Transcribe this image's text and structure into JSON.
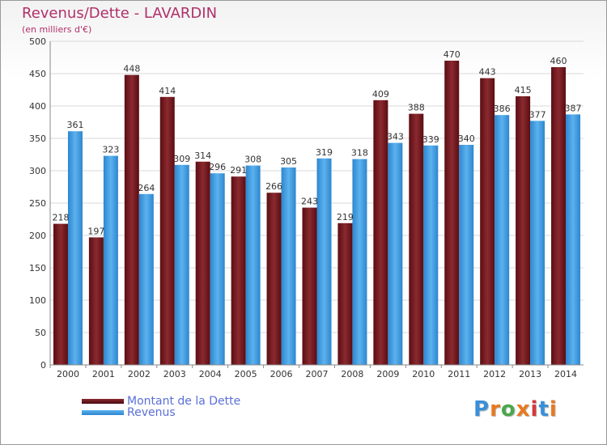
{
  "title": "Revenus/Dette - LAVARDIN",
  "subtitle": "(en milliers d'€)",
  "logo_text": "Proxiti",
  "colors": {
    "dette": "#6b1219",
    "revenus": "#3a98e0",
    "title": "#b0306a",
    "legend_text": "#5b6fd8"
  },
  "chart_data": {
    "type": "bar",
    "categories": [
      "2000",
      "2001",
      "2002",
      "2003",
      "2004",
      "2005",
      "2006",
      "2007",
      "2008",
      "2009",
      "2010",
      "2011",
      "2012",
      "2013",
      "2014"
    ],
    "series": [
      {
        "name": "Montant de la Dette",
        "values": [
          218,
          197,
          448,
          414,
          314,
          291,
          266,
          243,
          219,
          409,
          388,
          470,
          443,
          415,
          460
        ]
      },
      {
        "name": "Revenus",
        "values": [
          361,
          323,
          264,
          309,
          296,
          308,
          305,
          319,
          318,
          343,
          339,
          340,
          386,
          377,
          387
        ]
      }
    ],
    "ylim": [
      0,
      500
    ],
    "yticks": [
      0,
      50,
      100,
      150,
      200,
      250,
      300,
      350,
      400,
      450,
      500
    ],
    "grid": true,
    "legend": "bottom-left"
  }
}
